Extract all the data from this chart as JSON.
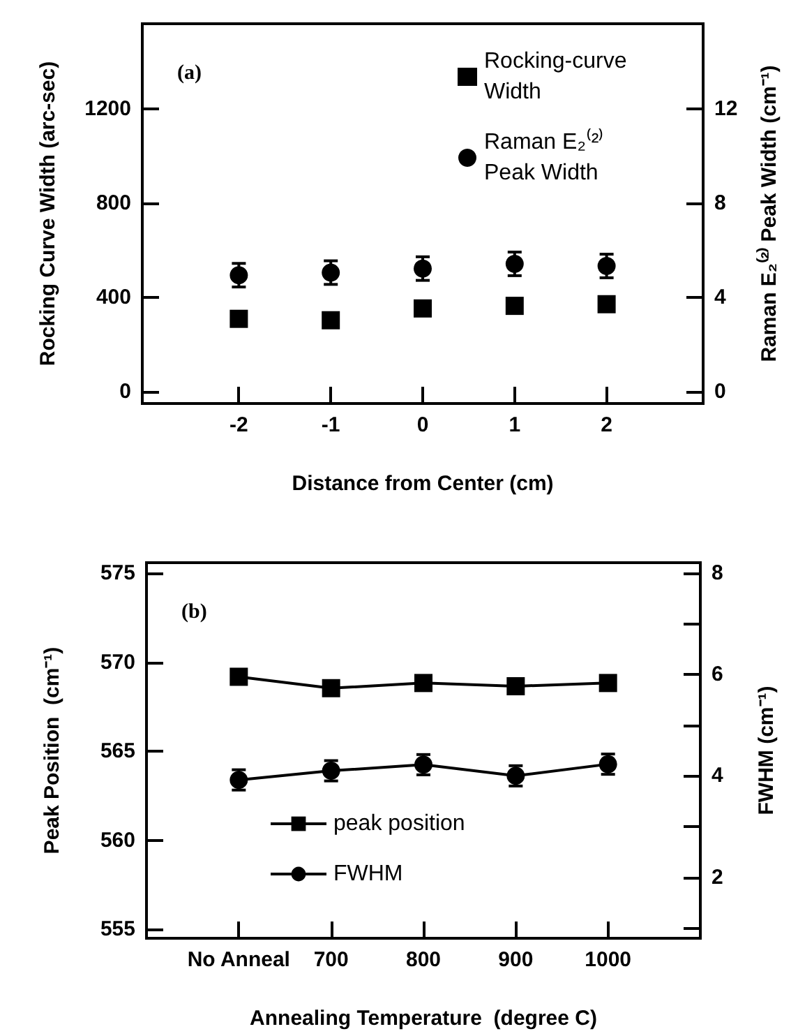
{
  "chart_data": [
    {
      "type": "scatter",
      "xlabel": "Distance from Center (cm)",
      "ylabel": "Rocking Curve Width (arc-sec)",
      "y2label": "Raman E₂⁽²⁾ Peak Width (cm⁻¹)",
      "annotations": [
        "(a)"
      ],
      "x": [
        -2,
        -1,
        0,
        1,
        2
      ],
      "xlim": [
        -3.05,
        3.05
      ],
      "xticks": [
        -2,
        -1,
        0,
        1,
        2
      ],
      "ylim": [
        -50,
        1560
      ],
      "yticks": [
        0,
        400,
        800,
        1200
      ],
      "y2lim": [
        -0.5,
        15.6
      ],
      "y2ticks": [
        0,
        4,
        8,
        12
      ],
      "legend": "top right",
      "grid": false,
      "series": [
        {
          "name": "Rocking-curve Width",
          "color": "#000000",
          "marker": "square",
          "values": [
            309,
            303,
            353,
            364,
            371
          ]
        },
        {
          "name": "Raman E₂⁽²⁾ Peak Width",
          "color": "#000000",
          "marker": "circle",
          "axis": "y2",
          "values": [
            4.94,
            5.05,
            5.22,
            5.42,
            5.33
          ],
          "errors": [
            0.5,
            0.5,
            0.5,
            0.5,
            0.5
          ]
        }
      ]
    },
    {
      "type": "line",
      "xlabel": "Annealing Temperature  (degree C)",
      "ylabel": "Peak Position  (cm⁻¹)",
      "y2label": "FWHM (cm⁻¹)",
      "annotations": [
        "(b)"
      ],
      "categories": [
        "No Anneal",
        "700",
        "800",
        "900",
        "1000"
      ],
      "ylim": [
        554.5,
        575.6
      ],
      "yticks": [
        555,
        560,
        565,
        570,
        575
      ],
      "y2lim": [
        0.8,
        8.2
      ],
      "y2ticks": [
        {
          "value": 1,
          "label": null
        },
        2,
        {
          "value": 3,
          "label": null
        },
        4,
        {
          "value": 5,
          "label": null
        },
        6,
        {
          "value": 7,
          "label": null
        },
        8
      ],
      "legend": "bottom",
      "grid": false,
      "line_style": "solid",
      "series": [
        {
          "name": "peak position",
          "color": "#000000",
          "marker": "square",
          "values": [
            569.19,
            568.55,
            568.84,
            568.66,
            568.84
          ]
        },
        {
          "name": "FWHM",
          "color": "#000000",
          "marker": "circle",
          "axis": "y2",
          "values": [
            3.92,
            4.1,
            4.22,
            4.0,
            4.23
          ],
          "errors": [
            0.2,
            0.2,
            0.2,
            0.2,
            0.2
          ]
        }
      ]
    }
  ]
}
